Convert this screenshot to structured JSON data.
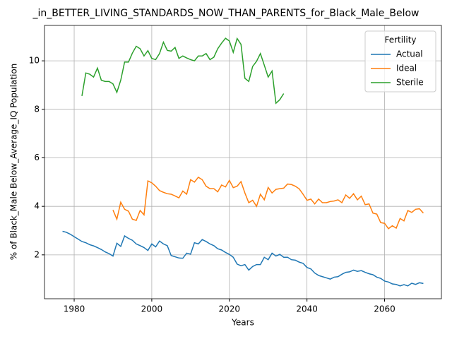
{
  "chart_data": {
    "type": "line",
    "title": "_in_BETTER_LIVING_STANDARDS_NOW_THAN_PARENTS_for_Black_Male_Below",
    "xlabel": "Years",
    "ylabel": "% of Black_Male Below_Average_IQ Population",
    "xlim": [
      1972.35,
      2074.65
    ],
    "ylim": [
      0.19,
      11.46
    ],
    "xticks": [
      1980,
      2000,
      2020,
      2040,
      2060
    ],
    "yticks": [
      2,
      4,
      6,
      8,
      10
    ],
    "grid": true,
    "legend_title": "Fertility",
    "legend_loc": "upper right",
    "series": [
      {
        "name": "Actual",
        "color": "#1f77b4",
        "x": [
          1977,
          1978,
          1979,
          1980,
          1981,
          1982,
          1983,
          1984,
          1985,
          1986,
          1987,
          1988,
          1989,
          1990,
          1991,
          1992,
          1993,
          1994,
          1995,
          1996,
          1997,
          1998,
          1999,
          2000,
          2001,
          2002,
          2003,
          2004,
          2005,
          2006,
          2007,
          2008,
          2009,
          2010,
          2011,
          2012,
          2013,
          2014,
          2015,
          2016,
          2017,
          2018,
          2019,
          2020,
          2021,
          2022,
          2023,
          2024,
          2025,
          2026,
          2027,
          2028,
          2029,
          2030,
          2031,
          2032,
          2033,
          2034,
          2035,
          2036,
          2037,
          2038,
          2039,
          2040,
          2041,
          2042,
          2043,
          2044,
          2045,
          2046,
          2047,
          2048,
          2049,
          2050,
          2051,
          2052,
          2053,
          2054,
          2055,
          2056,
          2057,
          2058,
          2059,
          2060,
          2061,
          2062,
          2063,
          2064,
          2065,
          2066,
          2067,
          2068,
          2069,
          2070
        ],
        "values": [
          2.97,
          2.93,
          2.85,
          2.75,
          2.65,
          2.55,
          2.5,
          2.42,
          2.37,
          2.3,
          2.22,
          2.12,
          2.05,
          1.95,
          2.48,
          2.35,
          2.78,
          2.68,
          2.6,
          2.45,
          2.38,
          2.3,
          2.18,
          2.45,
          2.33,
          2.57,
          2.45,
          2.38,
          1.97,
          1.92,
          1.87,
          1.86,
          2.07,
          2.03,
          2.5,
          2.45,
          2.63,
          2.55,
          2.45,
          2.38,
          2.25,
          2.2,
          2.1,
          2.02,
          1.9,
          1.62,
          1.55,
          1.6,
          1.37,
          1.52,
          1.6,
          1.6,
          1.9,
          1.8,
          2.07,
          1.95,
          2.02,
          1.9,
          1.9,
          1.8,
          1.78,
          1.7,
          1.65,
          1.48,
          1.42,
          1.25,
          1.15,
          1.1,
          1.05,
          1.0,
          1.08,
          1.1,
          1.2,
          1.28,
          1.3,
          1.37,
          1.32,
          1.35,
          1.28,
          1.22,
          1.18,
          1.08,
          1.03,
          0.92,
          0.88,
          0.8,
          0.78,
          0.72,
          0.77,
          0.72,
          0.83,
          0.78,
          0.85,
          0.82
        ]
      },
      {
        "name": "Ideal",
        "color": "#ff7f0e",
        "x": [
          1990,
          1991,
          1992,
          1993,
          1994,
          1995,
          1996,
          1997,
          1998,
          1999,
          2000,
          2001,
          2002,
          2003,
          2004,
          2005,
          2006,
          2007,
          2008,
          2009,
          2010,
          2011,
          2012,
          2013,
          2014,
          2015,
          2016,
          2017,
          2018,
          2019,
          2020,
          2021,
          2022,
          2023,
          2024,
          2025,
          2026,
          2027,
          2028,
          2029,
          2030,
          2031,
          2032,
          2033,
          2034,
          2035,
          2036,
          2037,
          2038,
          2039,
          2040,
          2041,
          2042,
          2043,
          2044,
          2045,
          2046,
          2047,
          2048,
          2049,
          2050,
          2051,
          2052,
          2053,
          2054,
          2055,
          2056,
          2057,
          2058,
          2059,
          2060,
          2061,
          2062,
          2063,
          2064,
          2065,
          2066,
          2067,
          2068,
          2069,
          2070
        ],
        "values": [
          3.85,
          3.47,
          4.17,
          3.88,
          3.8,
          3.47,
          3.42,
          3.83,
          3.65,
          5.05,
          4.97,
          4.83,
          4.65,
          4.58,
          4.52,
          4.5,
          4.43,
          4.35,
          4.63,
          4.5,
          5.1,
          5.0,
          5.2,
          5.1,
          4.83,
          4.73,
          4.73,
          4.6,
          4.88,
          4.8,
          5.07,
          4.77,
          4.83,
          5.02,
          4.55,
          4.15,
          4.25,
          4.0,
          4.5,
          4.27,
          4.78,
          4.55,
          4.7,
          4.73,
          4.75,
          4.92,
          4.9,
          4.83,
          4.72,
          4.5,
          4.25,
          4.3,
          4.1,
          4.3,
          4.15,
          4.15,
          4.2,
          4.22,
          4.27,
          4.15,
          4.47,
          4.33,
          4.52,
          4.27,
          4.42,
          4.07,
          4.1,
          3.72,
          3.68,
          3.33,
          3.3,
          3.08,
          3.2,
          3.1,
          3.5,
          3.4,
          3.83,
          3.75,
          3.88,
          3.9,
          3.72
        ]
      },
      {
        "name": "Sterile",
        "color": "#2ca02c",
        "x": [
          1982,
          1983,
          1984,
          1985,
          1986,
          1987,
          1988,
          1989,
          1990,
          1991,
          1992,
          1993,
          1994,
          1995,
          1996,
          1997,
          1998,
          1999,
          2000,
          2001,
          2002,
          2003,
          2004,
          2005,
          2006,
          2007,
          2008,
          2009,
          2010,
          2011,
          2012,
          2013,
          2014,
          2015,
          2016,
          2017,
          2018,
          2019,
          2020,
          2021,
          2022,
          2023,
          2024,
          2025,
          2026,
          2027,
          2028,
          2029,
          2030,
          2031,
          2032,
          2033,
          2034
        ],
        "values": [
          8.55,
          9.5,
          9.45,
          9.33,
          9.7,
          9.2,
          9.15,
          9.15,
          9.05,
          8.7,
          9.2,
          9.95,
          9.95,
          10.32,
          10.6,
          10.5,
          10.2,
          10.42,
          10.1,
          10.05,
          10.3,
          10.77,
          10.43,
          10.4,
          10.55,
          10.1,
          10.2,
          10.12,
          10.05,
          10.0,
          10.2,
          10.2,
          10.3,
          10.05,
          10.15,
          10.5,
          10.73,
          10.93,
          10.82,
          10.35,
          10.92,
          10.68,
          9.28,
          9.15,
          9.77,
          9.98,
          10.3,
          9.82,
          9.33,
          9.58,
          8.25,
          8.4,
          8.65
        ]
      }
    ]
  }
}
